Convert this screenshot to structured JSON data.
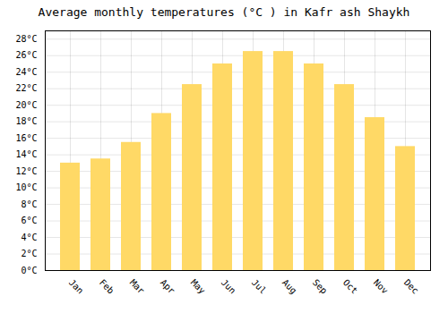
{
  "chart_data": {
    "type": "bar",
    "title": "Average monthly temperatures (°C ) in Kafr ash Shaykh",
    "categories": [
      "Jan",
      "Feb",
      "Mar",
      "Apr",
      "May",
      "Jun",
      "Jul",
      "Aug",
      "Sep",
      "Oct",
      "Nov",
      "Dec"
    ],
    "values": [
      13.0,
      13.5,
      15.5,
      19.0,
      22.5,
      25.0,
      26.5,
      26.5,
      25.0,
      22.5,
      18.5,
      15.0
    ],
    "color": "#FFD966",
    "ylim": [
      0,
      29
    ],
    "yticks": [
      {
        "value": 0,
        "label": "0°C"
      },
      {
        "value": 2,
        "label": "2°C"
      },
      {
        "value": 4,
        "label": "4°C"
      },
      {
        "value": 6,
        "label": "6°C"
      },
      {
        "value": 8,
        "label": "8°C"
      },
      {
        "value": 10,
        "label": "10°C"
      },
      {
        "value": 12,
        "label": "12°C"
      },
      {
        "value": 14,
        "label": "14°C"
      },
      {
        "value": 16,
        "label": "16°C"
      },
      {
        "value": 18,
        "label": "18°C"
      },
      {
        "value": 20,
        "label": "20°C"
      },
      {
        "value": 22,
        "label": "22°C"
      },
      {
        "value": 24,
        "label": "24°C"
      },
      {
        "value": 26,
        "label": "26°C"
      },
      {
        "value": 28,
        "label": "28°C"
      }
    ],
    "grid": true
  }
}
